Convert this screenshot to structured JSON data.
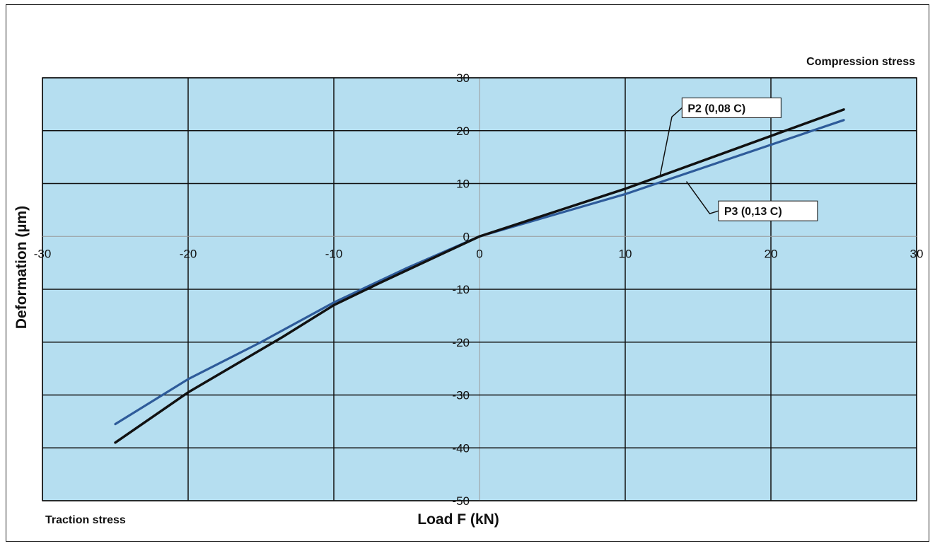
{
  "chart_data": {
    "type": "line",
    "xlabel": "Load F (kN)",
    "ylabel": "Deformation  (µm)",
    "xlim": [
      -30,
      30
    ],
    "ylim": [
      -50,
      30
    ],
    "x_ticks": [
      -30,
      -20,
      -10,
      0,
      10,
      20,
      30
    ],
    "y_ticks": [
      30,
      20,
      10,
      0,
      -10,
      -20,
      -30,
      -40,
      -50
    ],
    "x_tick_labels": [
      "-30",
      "-20",
      "-10",
      "0",
      "10",
      "20",
      "30"
    ],
    "y_tick_labels": [
      "30",
      "20",
      "10",
      "0",
      "-10",
      "-20",
      "-30",
      "-40",
      "-50"
    ],
    "grid": true,
    "annotations": {
      "compression": "Compression stress",
      "traction": "Traction stress"
    },
    "series": [
      {
        "name": "P2 (0,08 C)",
        "color": "#111111",
        "x": [
          -25,
          -20,
          -13.5,
          -10,
          -7,
          0,
          10,
          25
        ],
        "y": [
          -39,
          -29.5,
          -19,
          -13,
          -9,
          0,
          9,
          24
        ]
      },
      {
        "name": "P3 (0,13 C)",
        "color": "#2e5b9a",
        "x": [
          -25,
          -20,
          -15,
          -10,
          -5,
          0,
          10,
          25
        ],
        "y": [
          -35.5,
          -27,
          -20,
          -12.5,
          -6,
          0,
          8,
          22
        ]
      }
    ]
  },
  "colors": {
    "plot_background": "#b5def0",
    "grid_major": "#111111",
    "grid_zero": "#9a9a9a"
  }
}
